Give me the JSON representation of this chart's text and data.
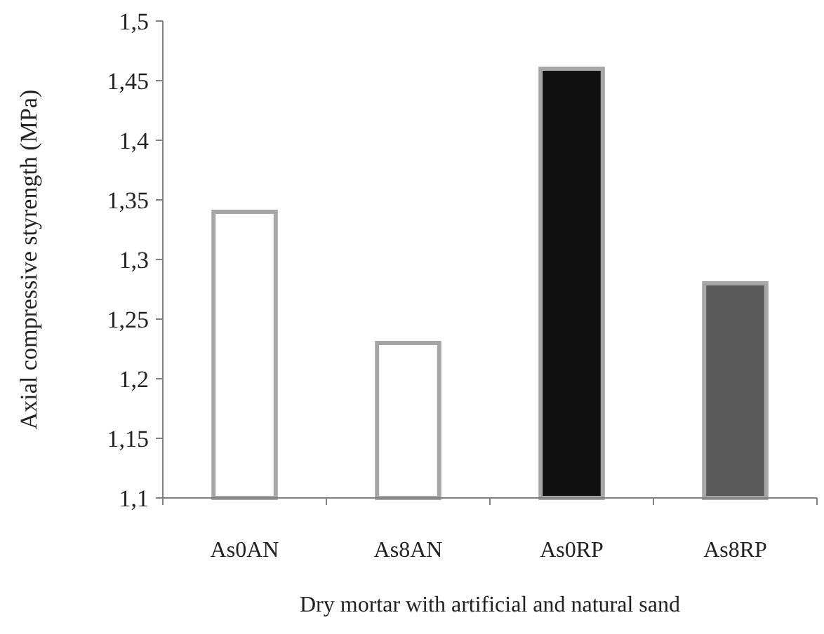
{
  "chart_data": {
    "type": "bar",
    "xlabel": "Dry mortar with artificial and natural sand",
    "ylabel": "Axial compressive  styrength (MPa)",
    "categories": [
      "As0AN",
      "As8AN",
      "As0RP",
      "As8RP"
    ],
    "values": [
      1.34,
      1.23,
      1.46,
      1.28
    ],
    "colors": [
      "#ffffff",
      "#ffffff",
      "#111111",
      "#595959"
    ],
    "ylim": [
      1.1,
      1.5
    ],
    "yticks": [
      {
        "value": 1.1,
        "label": "1,1"
      },
      {
        "value": 1.15,
        "label": "1,15"
      },
      {
        "value": 1.2,
        "label": "1,2"
      },
      {
        "value": 1.25,
        "label": "1,25"
      },
      {
        "value": 1.3,
        "label": "1,3"
      },
      {
        "value": 1.35,
        "label": "1,35"
      },
      {
        "value": 1.4,
        "label": "1,4"
      },
      {
        "value": 1.45,
        "label": "1,45"
      },
      {
        "value": 1.5,
        "label": "1,5"
      }
    ],
    "grid": false,
    "legend": false
  }
}
